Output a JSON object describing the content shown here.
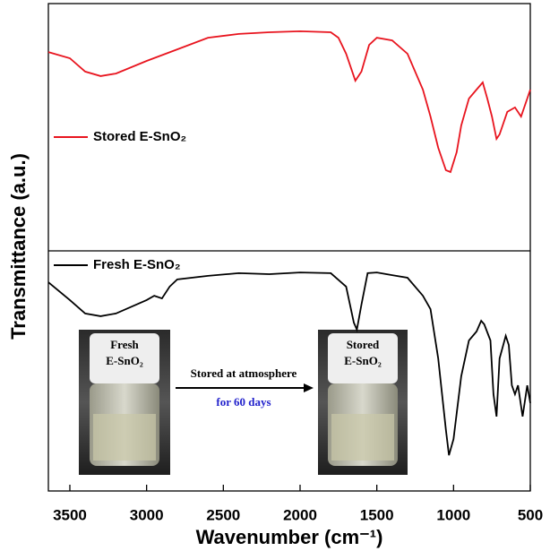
{
  "chart_data": {
    "type": "line",
    "xlabel": "Wavenumber (cm⁻¹)",
    "ylabel": "Transmittance (a.u.)",
    "xlim": [
      3640,
      500
    ],
    "xticks": [
      3500,
      3000,
      2500,
      2000,
      1500,
      1000,
      500
    ],
    "panels": [
      {
        "ylim": [
          0,
          100
        ],
        "series": [
          {
            "name": "Stored E-SnO₂",
            "color": "#e8141e",
            "x": [
              3640,
              3500,
              3400,
              3300,
              3200,
              3000,
              2800,
              2600,
              2400,
              2200,
              2000,
              1800,
              1750,
              1700,
              1640,
              1600,
              1550,
              1500,
              1400,
              1300,
              1200,
              1150,
              1100,
              1050,
              1020,
              980,
              950,
              900,
              850,
              810,
              780,
              750,
              720,
              700,
              650,
              600,
              560,
              520,
              500
            ],
            "values": [
              80.4,
              77.9,
              72.5,
              70.7,
              71.7,
              76.8,
              81.5,
              86.2,
              87.7,
              88.4,
              88.8,
              88.4,
              86.2,
              79.7,
              68.8,
              72.5,
              83.3,
              86.2,
              85.1,
              79.7,
              65.2,
              54.3,
              41.7,
              32.6,
              31.9,
              39.9,
              50.7,
              61.6,
              65.2,
              68.1,
              61.6,
              54.3,
              45.3,
              47.1,
              56.2,
              58.0,
              54.3,
              61.6,
              65.2
            ]
          }
        ]
      },
      {
        "ylim": [
          0,
          100
        ],
        "series": [
          {
            "name": "Fresh E-SnO₂",
            "color": "#000000",
            "x": [
              3640,
              3500,
              3400,
              3300,
              3200,
              3000,
              2950,
              2900,
              2850,
              2800,
              2600,
              2400,
              2200,
              2000,
              1800,
              1700,
              1650,
              1630,
              1600,
              1560,
              1500,
              1400,
              1300,
              1200,
              1150,
              1100,
              1050,
              1030,
              1000,
              950,
              900,
              850,
              820,
              800,
              760,
              740,
              720,
              700,
              660,
              640,
              620,
              600,
              580,
              550,
              520,
              500
            ],
            "values": [
              86.9,
              79.5,
              73.9,
              72.8,
              73.9,
              79.5,
              81.3,
              80.2,
              85.1,
              88.1,
              89.6,
              90.7,
              90.3,
              91.0,
              90.7,
              85.1,
              70.1,
              67.2,
              77.6,
              90.7,
              91.0,
              89.9,
              88.8,
              81.3,
              75.7,
              55.2,
              25.4,
              14.9,
              21.6,
              47.8,
              62.7,
              66.4,
              70.9,
              69.4,
              62.7,
              40.3,
              31.0,
              55.2,
              64.6,
              60.8,
              44.0,
              40.3,
              44.0,
              31.0,
              44.0,
              36.6
            ]
          }
        ]
      }
    ],
    "annotations": [
      "Fresh",
      "E-SnO₂",
      "Stored at atmosphere",
      "for 60 days",
      "Stored",
      "E-SnO₂"
    ]
  }
}
